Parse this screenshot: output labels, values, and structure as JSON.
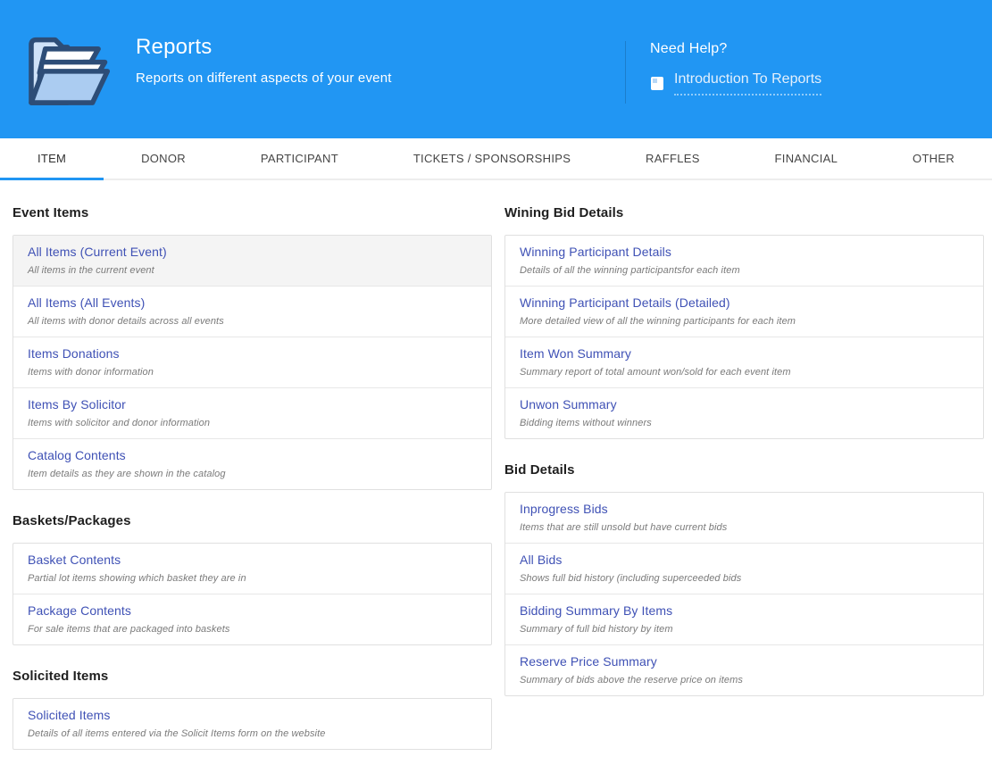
{
  "colors": {
    "header_bg": "#2196f3",
    "accent": "#2196f3",
    "link": "#3f51b5",
    "tab_text": "#454545",
    "heading": "#1f1f1f",
    "desc": "#7a7a7a",
    "border": "#e0e0e0",
    "highlight_bg": "#f4f4f4"
  },
  "header": {
    "title": "Reports",
    "subtitle": "Reports on different aspects of your event",
    "need_help": "Need Help?",
    "help_link": "Introduction To Reports",
    "icon": "folder-open-icon",
    "help_icon": "book-icon"
  },
  "tabs": {
    "active": "ITEM",
    "items": [
      "ITEM",
      "DONOR",
      "PARTICIPANT",
      "TICKETS / SPONSORSHIPS",
      "RAFFLES",
      "FINANCIAL",
      "OTHER"
    ]
  },
  "columns": {
    "left": [
      {
        "heading": "Event Items",
        "reports": [
          {
            "title": "All Items (Current Event)",
            "desc": "All items in the current event",
            "highlighted": true
          },
          {
            "title": "All Items (All Events)",
            "desc": "All items with donor details across all events"
          },
          {
            "title": "Items Donations",
            "desc": "Items with donor information"
          },
          {
            "title": "Items By Solicitor",
            "desc": "Items with solicitor and donor information"
          },
          {
            "title": "Catalog Contents",
            "desc": "Item details as they are shown in the catalog"
          }
        ]
      },
      {
        "heading": "Baskets/Packages",
        "reports": [
          {
            "title": "Basket Contents",
            "desc": "Partial lot items showing which basket they are in"
          },
          {
            "title": "Package Contents",
            "desc": "For sale items that are packaged into baskets"
          }
        ]
      },
      {
        "heading": "Solicited Items",
        "reports": [
          {
            "title": "Solicited Items",
            "desc": "Details of all items entered via the Solicit Items form on the website"
          }
        ]
      }
    ],
    "right": [
      {
        "heading": "Wining Bid Details",
        "reports": [
          {
            "title": "Winning Participant Details",
            "desc": "Details of all the winning participantsfor each item"
          },
          {
            "title": "Winning Participant Details (Detailed)",
            "desc": "More detailed view of all the winning participants for each item"
          },
          {
            "title": "Item Won Summary",
            "desc": "Summary report of total amount won/sold for each event item"
          },
          {
            "title": "Unwon Summary",
            "desc": "Bidding items without winners"
          }
        ]
      },
      {
        "heading": "Bid Details",
        "reports": [
          {
            "title": "Inprogress Bids",
            "desc": "Items that are still unsold but have current bids"
          },
          {
            "title": "All Bids",
            "desc": "Shows full bid history (including superceeded bids"
          },
          {
            "title": "Bidding Summary By Items",
            "desc": "Summary of full bid history by item"
          },
          {
            "title": "Reserve Price Summary",
            "desc": "Summary of bids above the reserve price on items"
          }
        ]
      }
    ]
  }
}
